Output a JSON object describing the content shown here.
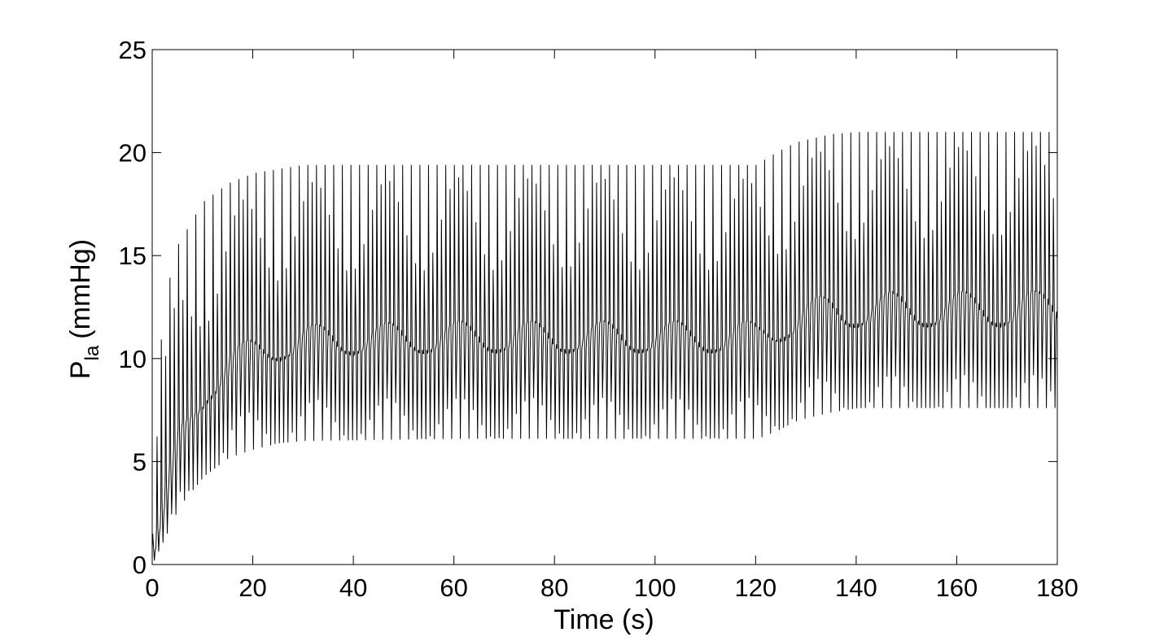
{
  "chart_data": {
    "type": "line",
    "title": "",
    "xlabel": "Time (s)",
    "ylabel": {
      "main": "P",
      "subscript": "la",
      "unit": "(mmHg)"
    },
    "xlim": [
      0,
      180
    ],
    "ylim": [
      0,
      25
    ],
    "xticks": [
      0,
      20,
      40,
      60,
      80,
      100,
      120,
      140,
      160,
      180
    ],
    "yticks": [
      0,
      5,
      10,
      15,
      20,
      25
    ],
    "grid": false,
    "legend": "none",
    "line_color": "#000000",
    "cardiac_period_s": 0.857,
    "respiratory_period_s": 14.3,
    "series": [
      {
        "values_description": "oscillating left atrial pressure trace",
        "envelope_upper": {
          "t": [
            0,
            2,
            5,
            10,
            15,
            20,
            25,
            30,
            60,
            100,
            120,
            124,
            128,
            135,
            140,
            180
          ],
          "p": [
            1.5,
            12.5,
            15.5,
            17.6,
            18.5,
            19.0,
            19.2,
            19.4,
            19.4,
            19.4,
            19.4,
            20.0,
            20.5,
            20.9,
            21.0,
            21.0
          ]
        },
        "envelope_lower": {
          "t": [
            0,
            2,
            5,
            10,
            15,
            20,
            25,
            30,
            60,
            100,
            120,
            124,
            128,
            135,
            140,
            180
          ],
          "p": [
            0.2,
            1.2,
            2.8,
            4.3,
            5.2,
            5.6,
            5.9,
            6.0,
            6.1,
            6.1,
            6.1,
            6.5,
            7.0,
            7.4,
            7.6,
            7.6
          ]
        },
        "band_upper": {
          "t": [
            0,
            5,
            10,
            15,
            20,
            30,
            60,
            100,
            120,
            124,
            128,
            135,
            140,
            180
          ],
          "p": [
            1.0,
            7.5,
            10.0,
            11.3,
            12.0,
            12.6,
            12.8,
            12.8,
            12.8,
            13.4,
            13.9,
            14.2,
            14.3,
            14.4
          ]
        },
        "band_lower": {
          "t": [
            0,
            5,
            10,
            15,
            20,
            30,
            60,
            100,
            120,
            124,
            128,
            135,
            140,
            180
          ],
          "p": [
            0.5,
            4.5,
            6.5,
            7.8,
            8.4,
            8.8,
            8.9,
            8.9,
            8.9,
            9.3,
            9.7,
            9.9,
            10.0,
            10.0
          ]
        }
      }
    ]
  }
}
